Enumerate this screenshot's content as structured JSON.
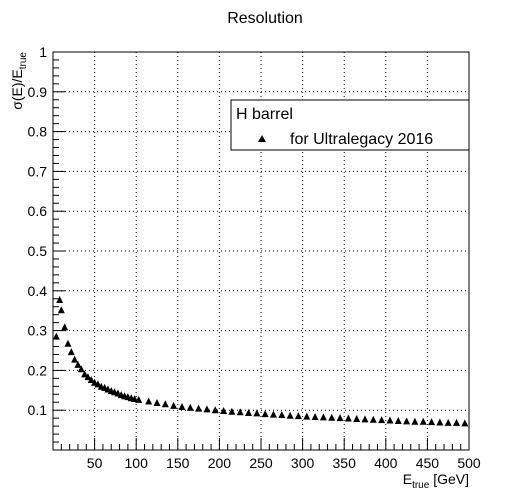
{
  "chart_data": {
    "type": "scatter",
    "title": "Resolution",
    "xlabel": {
      "main": "E",
      "sub": "true",
      "suffix": " [GeV]"
    },
    "ylabel": {
      "main": "σ(E)/E",
      "sub": "true"
    },
    "xlim": [
      0,
      500
    ],
    "ylim": [
      0,
      1
    ],
    "xticks": [
      50,
      100,
      150,
      200,
      250,
      300,
      350,
      400,
      450,
      500
    ],
    "yticks": [
      0.1,
      0.2,
      0.3,
      0.4,
      0.5,
      0.6,
      0.7,
      0.8,
      0.9,
      1
    ],
    "grid": true,
    "legend": {
      "placement": "top-right",
      "header": "H barrel",
      "entries": [
        {
          "label": "for Ultralegacy 2016",
          "marker": "triangle-up"
        }
      ]
    },
    "series": [
      {
        "name": "for Ultralegacy 2016",
        "color": "#000000",
        "marker": "triangle-up",
        "points": [
          [
            4,
            0.285
          ],
          [
            8,
            0.377
          ],
          [
            10,
            0.351
          ],
          [
            14,
            0.308
          ],
          [
            18,
            0.267
          ],
          [
            22,
            0.246
          ],
          [
            26,
            0.227
          ],
          [
            30,
            0.214
          ],
          [
            34,
            0.203
          ],
          [
            38,
            0.19
          ],
          [
            42,
            0.183
          ],
          [
            46,
            0.176
          ],
          [
            50,
            0.169
          ],
          [
            54,
            0.165
          ],
          [
            58,
            0.159
          ],
          [
            62,
            0.156
          ],
          [
            66,
            0.152
          ],
          [
            70,
            0.148
          ],
          [
            74,
            0.145
          ],
          [
            78,
            0.142
          ],
          [
            82,
            0.138
          ],
          [
            86,
            0.135
          ],
          [
            90,
            0.133
          ],
          [
            94,
            0.13
          ],
          [
            98,
            0.128
          ],
          [
            103,
            0.126
          ],
          [
            115,
            0.122
          ],
          [
            125,
            0.118
          ],
          [
            135,
            0.115
          ],
          [
            145,
            0.111
          ],
          [
            155,
            0.108
          ],
          [
            165,
            0.106
          ],
          [
            175,
            0.104
          ],
          [
            185,
            0.102
          ],
          [
            195,
            0.1
          ],
          [
            205,
            0.098
          ],
          [
            215,
            0.096
          ],
          [
            225,
            0.095
          ],
          [
            235,
            0.093
          ],
          [
            245,
            0.092
          ],
          [
            255,
            0.09
          ],
          [
            265,
            0.089
          ],
          [
            275,
            0.088
          ],
          [
            285,
            0.086
          ],
          [
            295,
            0.085
          ],
          [
            305,
            0.084
          ],
          [
            315,
            0.083
          ],
          [
            325,
            0.082
          ],
          [
            335,
            0.081
          ],
          [
            345,
            0.08
          ],
          [
            355,
            0.079
          ],
          [
            365,
            0.078
          ],
          [
            375,
            0.077
          ],
          [
            385,
            0.076
          ],
          [
            395,
            0.075
          ],
          [
            405,
            0.074
          ],
          [
            415,
            0.073
          ],
          [
            425,
            0.072
          ],
          [
            435,
            0.071
          ],
          [
            445,
            0.071
          ],
          [
            455,
            0.07
          ],
          [
            465,
            0.069
          ],
          [
            475,
            0.068
          ],
          [
            485,
            0.068
          ],
          [
            495,
            0.067
          ]
        ]
      }
    ]
  }
}
